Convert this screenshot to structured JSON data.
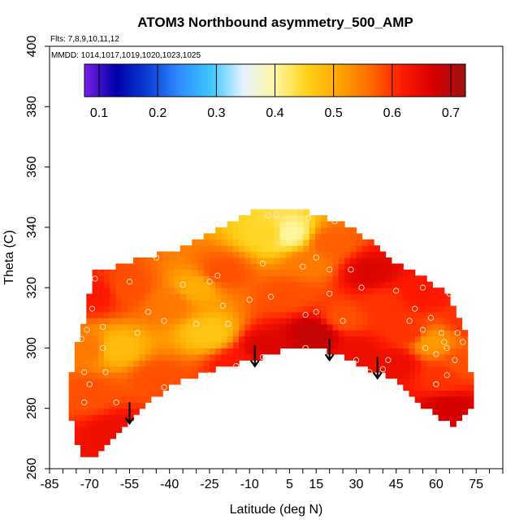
{
  "chart_data": {
    "type": "heatmap",
    "title": "ATOM3 Northbound asymmetry_500_AMP",
    "flights_label": "Flts: 7,8,9,10,11,12",
    "mmdd_label": "MMDD: 1014,1017,1019,1020,1023,1025",
    "xlabel": "Latitude (deg N)",
    "ylabel": "Theta (C)",
    "xlim": [
      -85,
      85
    ],
    "ylim": [
      260,
      400
    ],
    "x_ticks": [
      "-85",
      "-70",
      "-55",
      "-40",
      "-25",
      "-10",
      "5",
      "15",
      "30",
      "45",
      "60",
      "75"
    ],
    "y_ticks": [
      "260",
      "280",
      "300",
      "320",
      "340",
      "360",
      "380",
      "400"
    ],
    "colorbar": {
      "range": [
        0.075,
        0.725
      ],
      "ticks": [
        "0.1",
        "0.2",
        "0.3",
        "0.4",
        "0.5",
        "0.6",
        "0.7"
      ],
      "colors": [
        "#7a1ee8",
        "#0000a8",
        "#0a3fd6",
        "#2f8dff",
        "#3ec8ff",
        "#e6f3ff",
        "#fff7a0",
        "#ffd21c",
        "#ffa600",
        "#ff6a00",
        "#ff1a00",
        "#d40000",
        "#a01010"
      ]
    },
    "boundary_top": [
      [
        -72,
        310
      ],
      [
        -68,
        325
      ],
      [
        -60,
        327
      ],
      [
        -50,
        330
      ],
      [
        -35,
        333
      ],
      [
        -25,
        338
      ],
      [
        -15,
        342
      ],
      [
        -8,
        346
      ],
      [
        5,
        346
      ],
      [
        12,
        345
      ],
      [
        20,
        343
      ],
      [
        28,
        340
      ],
      [
        35,
        336
      ],
      [
        42,
        330
      ],
      [
        50,
        326
      ],
      [
        58,
        322
      ],
      [
        64,
        318
      ],
      [
        70,
        308
      ],
      [
        72,
        300
      ],
      [
        74,
        284
      ]
    ],
    "boundary_bottom": [
      [
        74,
        282
      ],
      [
        70,
        278
      ],
      [
        66,
        274
      ],
      [
        60,
        278
      ],
      [
        52,
        282
      ],
      [
        45,
        289
      ],
      [
        38,
        292
      ],
      [
        30,
        295
      ],
      [
        20,
        299
      ],
      [
        12,
        301
      ],
      [
        5,
        300
      ],
      [
        -5,
        297
      ],
      [
        -15,
        295
      ],
      [
        -28,
        292
      ],
      [
        -40,
        287
      ],
      [
        -48,
        282
      ],
      [
        -55,
        275
      ],
      [
        -63,
        268
      ],
      [
        -69,
        264
      ],
      [
        -72,
        264
      ],
      [
        -76,
        272
      ],
      [
        -78,
        283
      ],
      [
        -76,
        296
      ]
    ],
    "value_field": [
      {
        "lat": -70,
        "theta": 285,
        "amp": 0.58
      },
      {
        "lat": -70,
        "theta": 300,
        "amp": 0.55
      },
      {
        "lat": -68,
        "theta": 318,
        "amp": 0.62
      },
      {
        "lat": -60,
        "theta": 300,
        "amp": 0.48
      },
      {
        "lat": -55,
        "theta": 320,
        "amp": 0.58
      },
      {
        "lat": -60,
        "theta": 272,
        "amp": 0.64
      },
      {
        "lat": -45,
        "theta": 290,
        "amp": 0.58
      },
      {
        "lat": -40,
        "theta": 315,
        "amp": 0.55
      },
      {
        "lat": -30,
        "theta": 320,
        "amp": 0.5
      },
      {
        "lat": -25,
        "theta": 305,
        "amp": 0.47
      },
      {
        "lat": -20,
        "theta": 325,
        "amp": 0.58
      },
      {
        "lat": -15,
        "theta": 295,
        "amp": 0.62
      },
      {
        "lat": -5,
        "theta": 300,
        "amp": 0.66
      },
      {
        "lat": -3,
        "theta": 338,
        "amp": 0.45
      },
      {
        "lat": 5,
        "theta": 338,
        "amp": 0.4
      },
      {
        "lat": 5,
        "theta": 318,
        "amp": 0.58
      },
      {
        "lat": 15,
        "theta": 305,
        "amp": 0.69
      },
      {
        "lat": 12,
        "theta": 328,
        "amp": 0.55
      },
      {
        "lat": 20,
        "theta": 335,
        "amp": 0.57
      },
      {
        "lat": 25,
        "theta": 310,
        "amp": 0.58
      },
      {
        "lat": 30,
        "theta": 298,
        "amp": 0.64
      },
      {
        "lat": 35,
        "theta": 325,
        "amp": 0.66
      },
      {
        "lat": 40,
        "theta": 315,
        "amp": 0.6
      },
      {
        "lat": 45,
        "theta": 295,
        "amp": 0.64
      },
      {
        "lat": 50,
        "theta": 305,
        "amp": 0.6
      },
      {
        "lat": 55,
        "theta": 318,
        "amp": 0.62
      },
      {
        "lat": 58,
        "theta": 302,
        "amp": 0.52
      },
      {
        "lat": 62,
        "theta": 290,
        "amp": 0.6
      },
      {
        "lat": 65,
        "theta": 280,
        "amp": 0.67
      },
      {
        "lat": 70,
        "theta": 295,
        "amp": 0.58
      },
      {
        "lat": 72,
        "theta": 310,
        "amp": 0.6
      }
    ],
    "observation_points": [
      [
        -73,
        303
      ],
      [
        -71,
        306
      ],
      [
        -69,
        313
      ],
      [
        -68,
        323
      ],
      [
        -72,
        292
      ],
      [
        -70,
        288
      ],
      [
        -72,
        282
      ],
      [
        -65,
        300
      ],
      [
        -65,
        307
      ],
      [
        -60,
        282
      ],
      [
        -64,
        292
      ],
      [
        -55,
        322
      ],
      [
        -52,
        305
      ],
      [
        -48,
        312
      ],
      [
        -45,
        330
      ],
      [
        -42,
        309
      ],
      [
        -42,
        287
      ],
      [
        -35,
        287
      ],
      [
        -35,
        321
      ],
      [
        -30,
        308
      ],
      [
        -25,
        322
      ],
      [
        -25,
        291
      ],
      [
        -22,
        341
      ],
      [
        -22,
        324
      ],
      [
        -20,
        314
      ],
      [
        -18,
        308
      ],
      [
        -15,
        294
      ],
      [
        -10,
        316
      ],
      [
        -5,
        328
      ],
      [
        -5,
        297
      ],
      [
        -3,
        344
      ],
      [
        -2,
        317
      ],
      [
        0,
        344
      ],
      [
        10,
        327
      ],
      [
        11,
        311
      ],
      [
        11,
        300
      ],
      [
        12,
        343
      ],
      [
        15,
        330
      ],
      [
        15,
        312
      ],
      [
        20,
        297
      ],
      [
        20,
        326
      ],
      [
        20,
        318
      ],
      [
        22,
        342
      ],
      [
        25,
        309
      ],
      [
        28,
        326
      ],
      [
        30,
        296
      ],
      [
        32,
        320
      ],
      [
        35,
        292
      ],
      [
        40,
        293
      ],
      [
        42,
        296
      ],
      [
        45,
        286
      ],
      [
        45,
        319
      ],
      [
        50,
        309
      ],
      [
        52,
        313
      ],
      [
        55,
        320
      ],
      [
        55,
        306
      ],
      [
        56,
        300
      ],
      [
        58,
        310
      ],
      [
        60,
        298
      ],
      [
        60,
        288
      ],
      [
        62,
        305
      ],
      [
        63,
        302
      ],
      [
        64,
        300
      ],
      [
        64,
        291
      ],
      [
        65,
        318
      ],
      [
        67,
        296
      ],
      [
        68,
        305
      ],
      [
        70,
        302
      ]
    ],
    "arrows": [
      {
        "lat": -55,
        "theta_from": 282,
        "theta_to": 275
      },
      {
        "lat": -8,
        "theta_from": 301,
        "theta_to": 294
      },
      {
        "lat": 20,
        "theta_from": 303,
        "theta_to": 296
      },
      {
        "lat": 38,
        "theta_from": 297,
        "theta_to": 290
      }
    ]
  }
}
